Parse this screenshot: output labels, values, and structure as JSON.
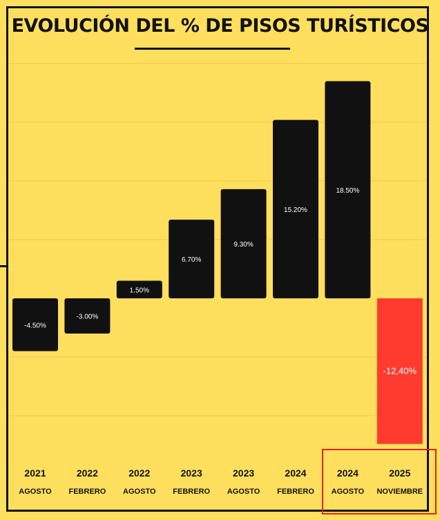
{
  "title": "EVOLUCIÓN DEL % DE PISOS TURÍSTICOS",
  "colors": {
    "background": "#FFDF5D",
    "bar": "#111111",
    "highlight_bar": "#FF3B30",
    "highlight_box": "#E2231A",
    "gridline": "#E9C94C"
  },
  "chart_data": {
    "type": "bar",
    "title": "EVOLUCIÓN DEL % DE PISOS TURÍSTICOS",
    "xlabel": "",
    "ylabel": "",
    "grid": true,
    "categories": [
      {
        "year": "2021",
        "month": "AGOSTO"
      },
      {
        "year": "2022",
        "month": "FEBRERO"
      },
      {
        "year": "2022",
        "month": "AGOSTO"
      },
      {
        "year": "2023",
        "month": "FEBRERO"
      },
      {
        "year": "2023",
        "month": "AGOSTO"
      },
      {
        "year": "2024",
        "month": "FEBRERO"
      },
      {
        "year": "2024",
        "month": "AGOSTO"
      },
      {
        "year": "2025",
        "month": "NOVIEMBRE"
      }
    ],
    "values": [
      -4.5,
      -3.0,
      1.5,
      6.7,
      9.3,
      15.2,
      18.5,
      -12.4
    ],
    "labels": [
      "-4.50%",
      "-3.00%",
      "1.50%",
      "6.70%",
      "9.30%",
      "15.20%",
      "18.50%",
      "-12,40%"
    ],
    "highlighted_index": 7,
    "ylim": [
      -14,
      20
    ]
  }
}
